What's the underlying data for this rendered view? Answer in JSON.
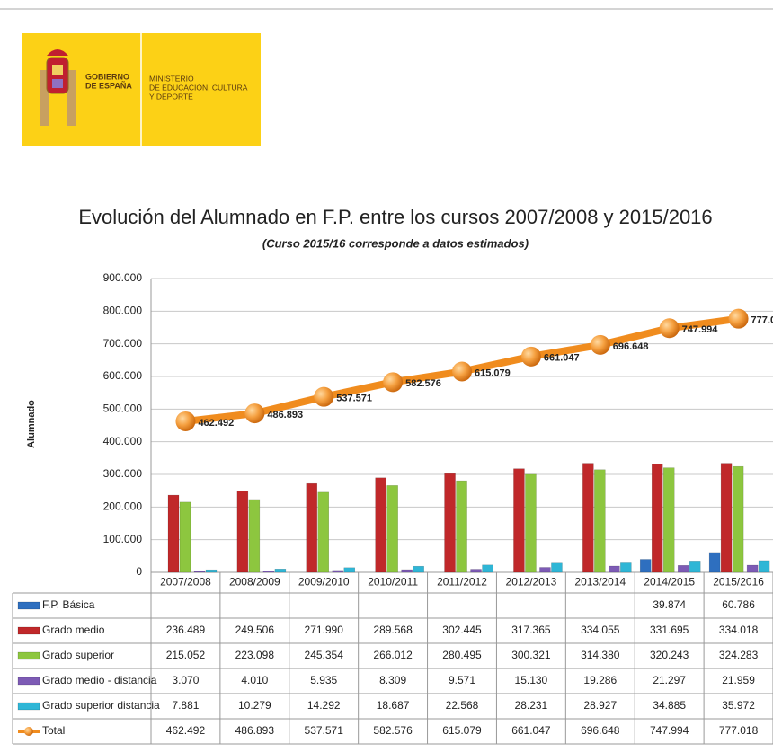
{
  "header": {
    "left_lines": [
      "GOBIERNO",
      "DE ESPAÑA"
    ],
    "right_lines": [
      "MINISTERIO",
      "DE EDUCACIÓN, CULTURA",
      "Y DEPORTE"
    ]
  },
  "chart_data": {
    "type": "bar",
    "title": "Evolución del Alumnado en F.P. entre los cursos 2007/2008 y 2015/2016",
    "subtitle": "(Curso 2015/16 corresponde a datos estimados)",
    "y_label": "Alumnado",
    "categories": [
      "2007/2008",
      "2008/2009",
      "2009/2010",
      "2010/2011",
      "2011/2012",
      "2012/2013",
      "2013/2014",
      "2014/2015",
      "2015/2016"
    ],
    "ylim": [
      0,
      900000
    ],
    "yticks": [
      0,
      {
        "value": 100000,
        "label": "100.000"
      },
      {
        "value": 200000,
        "label": "200.000"
      },
      {
        "value": 300000,
        "label": "300.000"
      },
      {
        "value": 400000,
        "label": "400.000"
      },
      {
        "value": 500000,
        "label": "500.000"
      },
      {
        "value": 600000,
        "label": "600.000"
      },
      {
        "value": 700000,
        "label": "700.000"
      },
      {
        "value": 800000,
        "label": "800.000"
      },
      {
        "value": 900000,
        "label": "900.000"
      }
    ],
    "grid": true,
    "series": [
      {
        "name": "F.P. Básica",
        "type": "bar",
        "color": "#2e6fbf",
        "values": [
          null,
          null,
          null,
          null,
          null,
          null,
          null,
          39874,
          60786
        ],
        "value_labels": [
          null,
          null,
          null,
          null,
          null,
          null,
          null,
          "39.874",
          "60.786"
        ]
      },
      {
        "name": "Grado medio",
        "type": "bar",
        "color": "#c0282a",
        "values": [
          236489,
          249506,
          271990,
          289568,
          302445,
          317365,
          334055,
          331695,
          334018
        ],
        "value_labels": [
          "236.489",
          "249.506",
          "271.990",
          "289.568",
          "302.445",
          "317.365",
          "334.055",
          "331.695",
          "334.018"
        ]
      },
      {
        "name": "Grado superior",
        "type": "bar",
        "color": "#8dc63f",
        "values": [
          215052,
          223098,
          245354,
          266012,
          280495,
          300321,
          314380,
          320243,
          324283
        ],
        "value_labels": [
          "215.052",
          "223.098",
          "245.354",
          "266.012",
          "280.495",
          "300.321",
          "314.380",
          "320.243",
          "324.283"
        ]
      },
      {
        "name": "Grado medio - distancia",
        "type": "bar",
        "color": "#7d5bb5",
        "values": [
          3070,
          4010,
          5935,
          8309,
          9571,
          15130,
          19286,
          21297,
          21959
        ],
        "value_labels": [
          "3.070",
          "4.010",
          "5.935",
          "8.309",
          "9.571",
          "15.130",
          "19.286",
          "21.297",
          "21.959"
        ]
      },
      {
        "name": "Grado superior distancia",
        "type": "bar",
        "color": "#2fb6d6",
        "values": [
          7881,
          10279,
          14292,
          18687,
          22568,
          28231,
          28927,
          34885,
          35972
        ],
        "value_labels": [
          "7.881",
          "10.279",
          "14.292",
          "18.687",
          "22.568",
          "28.231",
          "28.927",
          "34.885",
          "35.972"
        ]
      },
      {
        "name": "Total",
        "type": "line",
        "color": "#f08c1e",
        "values": [
          462492,
          486893,
          537571,
          582576,
          615079,
          661047,
          696648,
          747994,
          777018
        ],
        "value_labels": [
          "462.492",
          "486.893",
          "537.571",
          "582.576",
          "615.079",
          "661.047",
          "696.648",
          "747.994",
          "777.018"
        ]
      }
    ]
  }
}
